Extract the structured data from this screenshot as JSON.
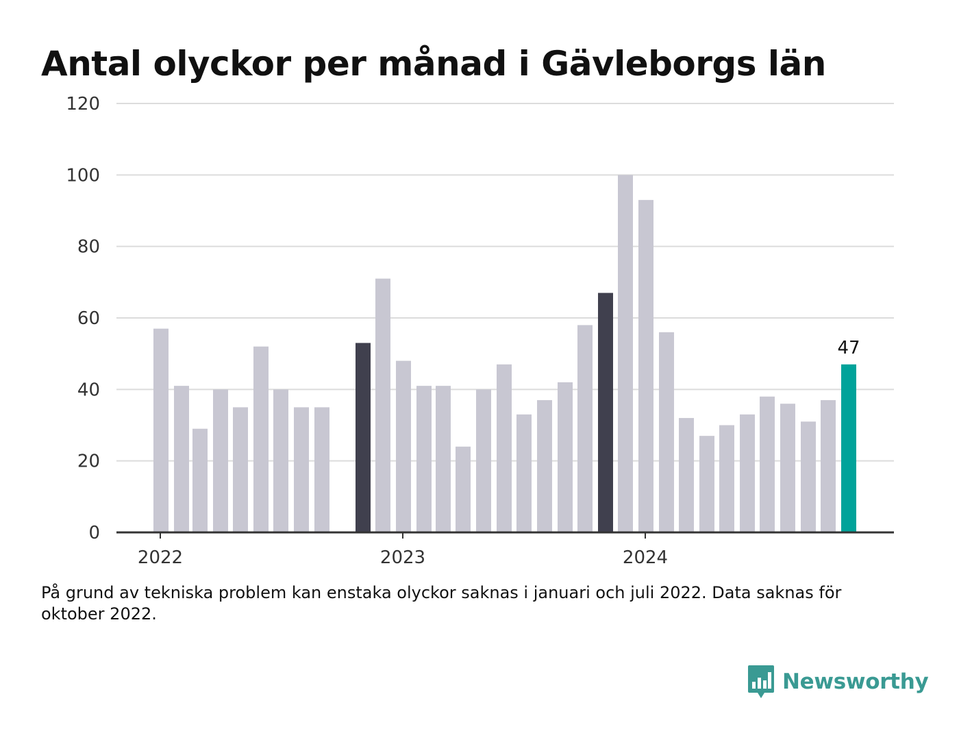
{
  "chart_data": {
    "type": "bar",
    "title": "Antal olyckor per månad i Gävleborgs län",
    "ylim": [
      0,
      120
    ],
    "y_ticks": [
      0,
      20,
      40,
      60,
      80,
      100,
      120
    ],
    "x_tick_labels": [
      "2022",
      "2023",
      "2024"
    ],
    "grid": true,
    "values": [
      57,
      41,
      29,
      40,
      35,
      52,
      40,
      35,
      35,
      null,
      53,
      71,
      48,
      41,
      41,
      24,
      40,
      47,
      33,
      37,
      42,
      58,
      67,
      100,
      93,
      56,
      32,
      27,
      30,
      33,
      38,
      36,
      31,
      37,
      47
    ],
    "highlighted_value_label": "47",
    "colors": {
      "default": "#c8c7d2",
      "year_start": "#40404e",
      "latest": "#00a39a",
      "grid": "#dcdcdc",
      "axis": "#333333"
    }
  },
  "note": "På grund av tekniska problem kan enstaka olyckor saknas i januari och juli 2022. Data saknas för oktober 2022.",
  "brand": {
    "name": "Newsworthy",
    "icon": "bar-chart-speech-bubble-icon",
    "color": "#3a9a93"
  }
}
